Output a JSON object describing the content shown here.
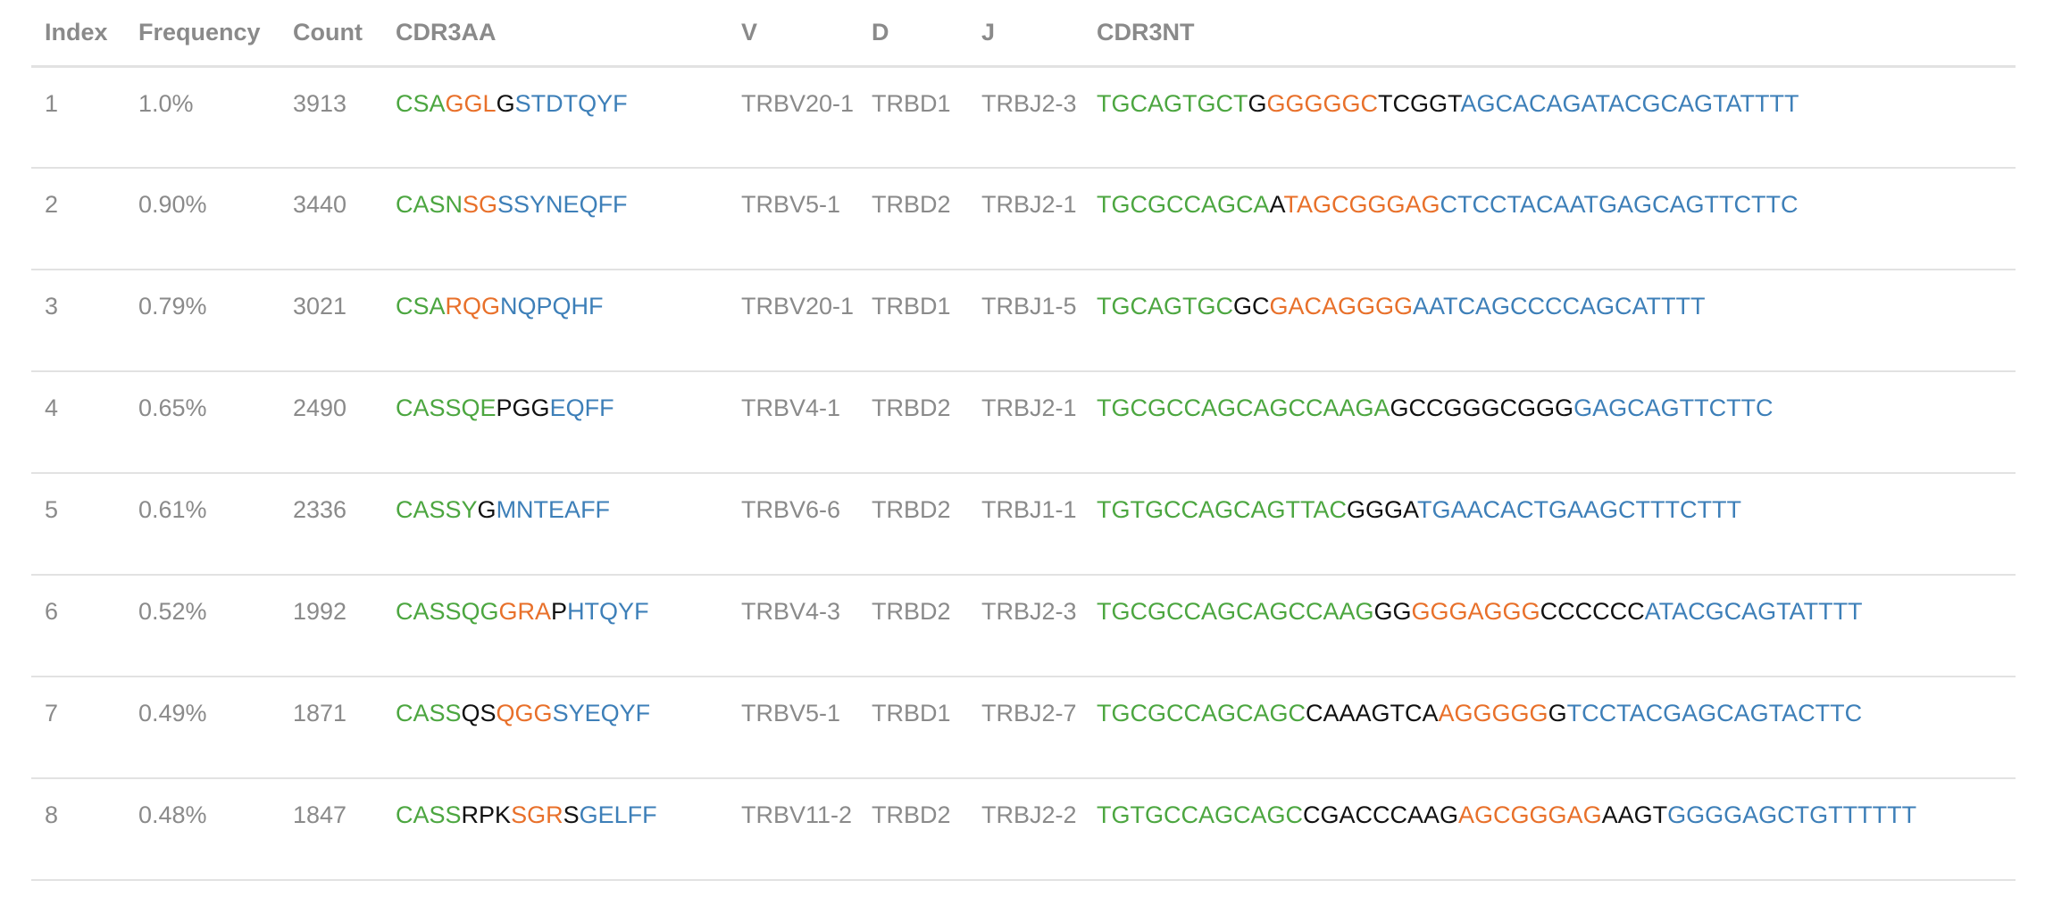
{
  "columns": [
    "Index",
    "Frequency",
    "Count",
    "CDR3AA",
    "V",
    "D",
    "J",
    "CDR3NT"
  ],
  "colors": {
    "v": "#4ca640",
    "n": "#111111",
    "d": "#e8702a",
    "j": "#3d7fb8",
    "text": "#8a8a8a"
  },
  "rows": [
    {
      "index": "1",
      "frequency": "1.0%",
      "count": "3913",
      "cdr3aa": [
        [
          "v",
          "CSA"
        ],
        [
          "d",
          "GGL"
        ],
        [
          "n",
          "G"
        ],
        [
          "j",
          "STDTQYF"
        ]
      ],
      "v": "TRBV20-1",
      "d": "TRBD1",
      "j": "TRBJ2-3",
      "cdr3nt": [
        [
          "v",
          "TGCAGTGCT"
        ],
        [
          "n",
          "G"
        ],
        [
          "d",
          "GGGGGC"
        ],
        [
          "n",
          "TCGGT"
        ],
        [
          "j",
          "AGCACAGATACGCAGTATTTT"
        ]
      ]
    },
    {
      "index": "2",
      "frequency": "0.90%",
      "count": "3440",
      "cdr3aa": [
        [
          "v",
          "CASN"
        ],
        [
          "d",
          "SG"
        ],
        [
          "j",
          "SSYNEQFF"
        ]
      ],
      "v": "TRBV5-1",
      "d": "TRBD2",
      "j": "TRBJ2-1",
      "cdr3nt": [
        [
          "v",
          "TGCGCCAGCA"
        ],
        [
          "n",
          "A"
        ],
        [
          "d",
          "TAGCGGGAG"
        ],
        [
          "j",
          "CTCCTACAATGAGCAGTTCTTC"
        ]
      ]
    },
    {
      "index": "3",
      "frequency": "0.79%",
      "count": "3021",
      "cdr3aa": [
        [
          "v",
          "CSA"
        ],
        [
          "d",
          "RQG"
        ],
        [
          "j",
          "NQPQHF"
        ]
      ],
      "v": "TRBV20-1",
      "d": "TRBD1",
      "j": "TRBJ1-5",
      "cdr3nt": [
        [
          "v",
          "TGCAGTGC"
        ],
        [
          "n",
          "GC"
        ],
        [
          "d",
          "GACAGGGG"
        ],
        [
          "j",
          "AATCAGCCCCAGCATTTT"
        ]
      ]
    },
    {
      "index": "4",
      "frequency": "0.65%",
      "count": "2490",
      "cdr3aa": [
        [
          "v",
          "CASSQE"
        ],
        [
          "n",
          "PGG"
        ],
        [
          "j",
          "EQFF"
        ]
      ],
      "v": "TRBV4-1",
      "d": "TRBD2",
      "j": "TRBJ2-1",
      "cdr3nt": [
        [
          "v",
          "TGCGCCAGCAGCCAAGA"
        ],
        [
          "n",
          "GCCGGGCGGG"
        ],
        [
          "j",
          "GAGCAGTTCTTC"
        ]
      ]
    },
    {
      "index": "5",
      "frequency": "0.61%",
      "count": "2336",
      "cdr3aa": [
        [
          "v",
          "CASSY"
        ],
        [
          "n",
          "G"
        ],
        [
          "j",
          "MNTEAFF"
        ]
      ],
      "v": "TRBV6-6",
      "d": "TRBD2",
      "j": "TRBJ1-1",
      "cdr3nt": [
        [
          "v",
          "TGTGCCAGCAGTTAC"
        ],
        [
          "n",
          "GGGA"
        ],
        [
          "j",
          "TGAACACTGAAGCTTTCTTT"
        ]
      ]
    },
    {
      "index": "6",
      "frequency": "0.52%",
      "count": "1992",
      "cdr3aa": [
        [
          "v",
          "CASSQG"
        ],
        [
          "d",
          "GRA"
        ],
        [
          "n",
          "P"
        ],
        [
          "j",
          "HTQYF"
        ]
      ],
      "v": "TRBV4-3",
      "d": "TRBD2",
      "j": "TRBJ2-3",
      "cdr3nt": [
        [
          "v",
          "TGCGCCAGCAGCCAAG"
        ],
        [
          "n",
          "GG"
        ],
        [
          "d",
          "GGGAGGG"
        ],
        [
          "n",
          "CCCCCC"
        ],
        [
          "j",
          "ATACGCAGTATTTT"
        ]
      ]
    },
    {
      "index": "7",
      "frequency": "0.49%",
      "count": "1871",
      "cdr3aa": [
        [
          "v",
          "CASS"
        ],
        [
          "n",
          "QS"
        ],
        [
          "d",
          "QGG"
        ],
        [
          "j",
          "SYEQYF"
        ]
      ],
      "v": "TRBV5-1",
      "d": "TRBD1",
      "j": "TRBJ2-7",
      "cdr3nt": [
        [
          "v",
          "TGCGCCAGCAGC"
        ],
        [
          "n",
          "CAAAGTCA"
        ],
        [
          "d",
          "AGGGGG"
        ],
        [
          "n",
          "G"
        ],
        [
          "j",
          "TCCTACGAGCAGTACTTC"
        ]
      ]
    },
    {
      "index": "8",
      "frequency": "0.48%",
      "count": "1847",
      "cdr3aa": [
        [
          "v",
          "CASS"
        ],
        [
          "n",
          "RPK"
        ],
        [
          "d",
          "SGR"
        ],
        [
          "n",
          "S"
        ],
        [
          "j",
          "GELFF"
        ]
      ],
      "v": "TRBV11-2",
      "d": "TRBD2",
      "j": "TRBJ2-2",
      "cdr3nt": [
        [
          "v",
          "TGTGCCAGCAGC"
        ],
        [
          "n",
          "CGACCCAAG"
        ],
        [
          "d",
          "AGCGGGAG"
        ],
        [
          "n",
          "AAGT"
        ],
        [
          "j",
          "GGGGAGCTGTTTTTT"
        ]
      ]
    }
  ]
}
